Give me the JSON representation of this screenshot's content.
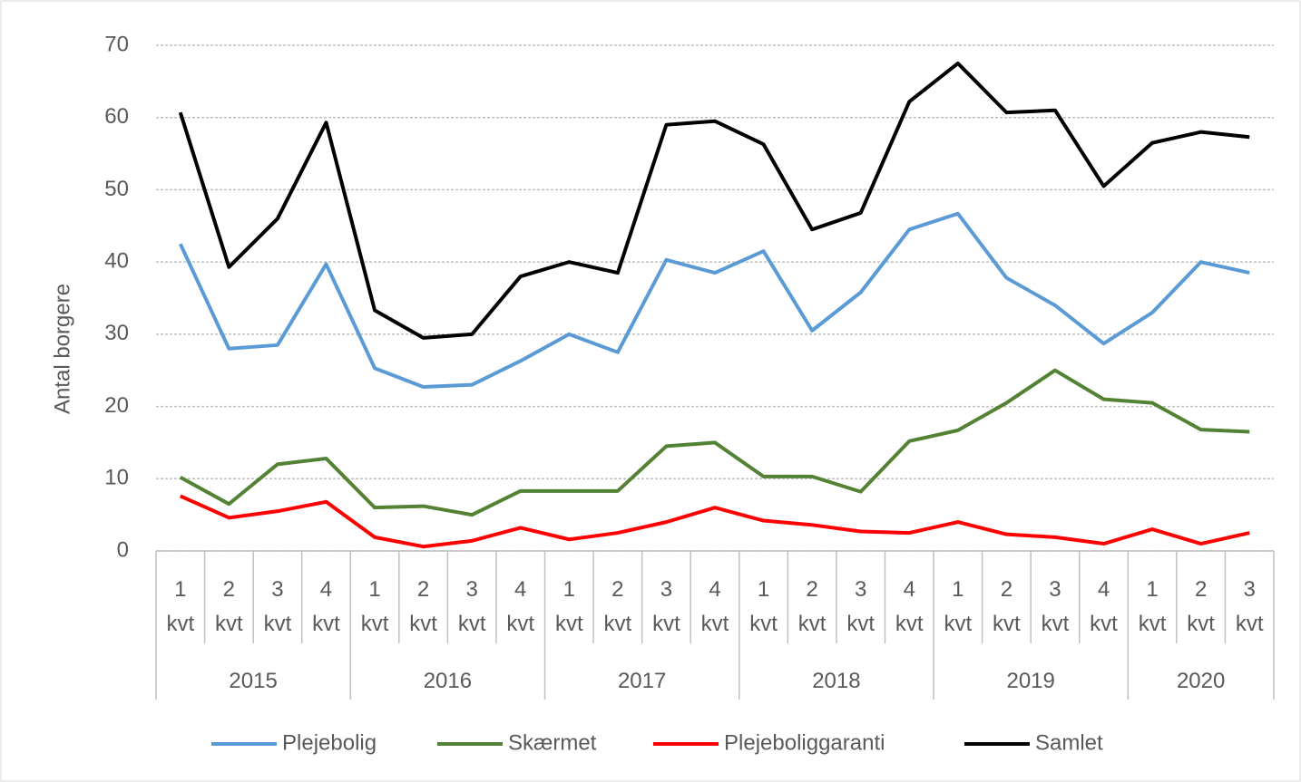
{
  "chart_data": {
    "type": "line",
    "y_label": "Antal borgere",
    "categories": [
      "1 kvt",
      "2 kvt",
      "3 kvt",
      "4 kvt",
      "1 kvt",
      "2 kvt",
      "3 kvt",
      "4 kvt",
      "1 kvt",
      "2 kvt",
      "3 kvt",
      "4 kvt",
      "1 kvt",
      "2 kvt",
      "3 kvt",
      "4 kvt",
      "1 kvt",
      "2 kvt",
      "3 kvt",
      "4 kvt",
      "1 kvt",
      "2 kvt",
      "3 kvt"
    ],
    "groups": [
      {
        "label": "2015",
        "span": 4
      },
      {
        "label": "2016",
        "span": 4
      },
      {
        "label": "2017",
        "span": 4
      },
      {
        "label": "2018",
        "span": 4
      },
      {
        "label": "2019",
        "span": 4
      },
      {
        "label": "2020",
        "span": 3
      }
    ],
    "series": [
      {
        "name": "Plejebolig",
        "color": "#5b9bd5",
        "values": [
          42.5,
          28,
          28.5,
          39.7,
          25.3,
          22.7,
          23,
          26.3,
          30,
          27.5,
          40.3,
          38.5,
          41.5,
          30.5,
          35.8,
          44.5,
          46.7,
          37.8,
          34,
          28.7,
          33,
          40,
          38.5
        ]
      },
      {
        "name": "Skærmet",
        "color": "#548235",
        "values": [
          10.2,
          6.5,
          12,
          12.8,
          6,
          6.2,
          5,
          8.3,
          8.3,
          8.3,
          14.5,
          15,
          10.3,
          10.3,
          8.2,
          15.2,
          16.7,
          20.5,
          25,
          21,
          20.5,
          16.8,
          16.5
        ]
      },
      {
        "name": "Plejeboliggaranti",
        "color": "#ff0000",
        "values": [
          7.6,
          4.6,
          5.5,
          6.8,
          1.9,
          0.6,
          1.4,
          3.2,
          1.6,
          2.5,
          4,
          6,
          4.2,
          3.6,
          2.7,
          2.5,
          4,
          2.3,
          1.9,
          1,
          3,
          1,
          2.5
        ]
      },
      {
        "name": "Samlet",
        "color": "#000000",
        "values": [
          60.7,
          39.3,
          46,
          59.3,
          33.3,
          29.5,
          30,
          38,
          40,
          38.5,
          59,
          59.5,
          56.3,
          44.5,
          46.8,
          62.2,
          67.5,
          60.7,
          61,
          50.5,
          56.5,
          58,
          57.3
        ]
      }
    ],
    "ylim": [
      0,
      70
    ],
    "yticks": [
      0,
      10,
      20,
      30,
      40,
      50,
      60,
      70
    ],
    "grid": true,
    "legend": "bottom"
  }
}
